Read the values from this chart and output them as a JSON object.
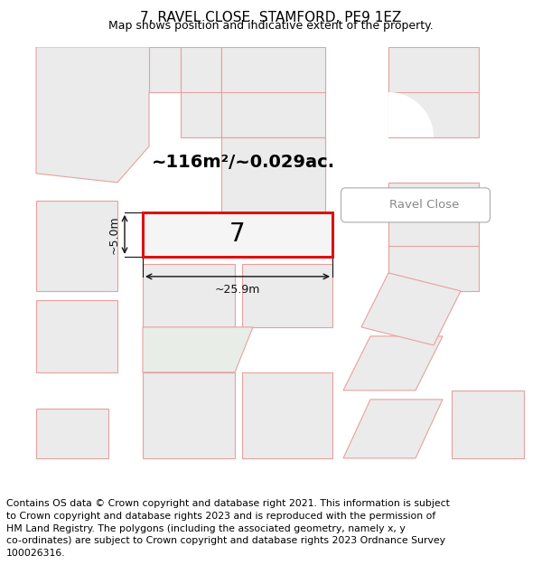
{
  "title": "7, RAVEL CLOSE, STAMFORD, PE9 1EZ",
  "subtitle": "Map shows position and indicative extent of the property.",
  "area_text": "~116m²/~0.029ac.",
  "property_number": "7",
  "width_label": "~25.9m",
  "height_label": "~5.0m",
  "street_label": "Ravel Close",
  "footer_lines": [
    "Contains OS data © Crown copyright and database right 2021. This information is subject",
    "to Crown copyright and database rights 2023 and is reproduced with the permission of",
    "HM Land Registry. The polygons (including the associated geometry, namely x, y",
    "co-ordinates) are subject to Crown copyright and database rights 2023 Ordnance Survey",
    "100026316."
  ],
  "map_bg": "#f7f6f4",
  "poly_fill": "#ebebeb",
  "poly_fill_green": "#e8ede8",
  "poly_edge": "#e8a0a0",
  "poly_edge_dark": "#d06060",
  "road_bg": "#ffffff",
  "prop_fill": "#f5f5f5",
  "prop_edge": "#dd1111",
  "dim_color": "#111111",
  "street_label_color": "#888888",
  "title_fontsize": 11,
  "subtitle_fontsize": 9,
  "footer_fontsize": 7.8,
  "area_fontsize": 14,
  "prop_num_fontsize": 20,
  "dim_fontsize": 9
}
